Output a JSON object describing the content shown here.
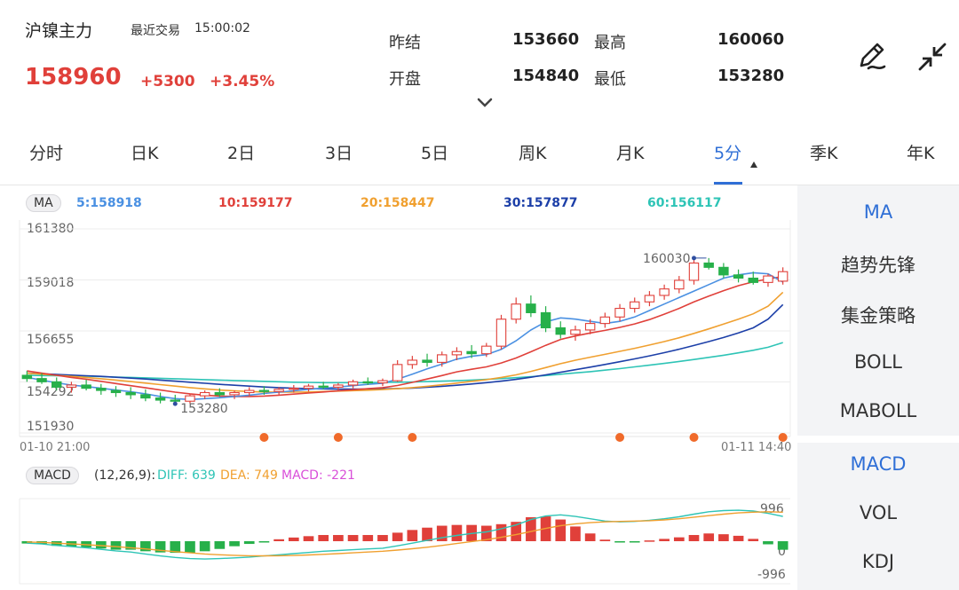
{
  "header": {
    "instrument_name": "沪镍主力",
    "last_trade_label": "最近交易",
    "last_trade_time": "15:00:02",
    "last_price": "158960",
    "change": "+5300",
    "change_pct": "+3.45%",
    "quotes": [
      {
        "label": "昨结",
        "value": "153660"
      },
      {
        "label": "最高",
        "value": "160060"
      },
      {
        "label": "开盘",
        "value": "154840"
      },
      {
        "label": "最低",
        "value": "153280"
      }
    ]
  },
  "tabs": [
    {
      "label": "分时"
    },
    {
      "label": "日K"
    },
    {
      "label": "2日"
    },
    {
      "label": "3日"
    },
    {
      "label": "5日"
    },
    {
      "label": "周K"
    },
    {
      "label": "月K"
    },
    {
      "label": "5分",
      "active": true
    },
    {
      "label": "季K"
    },
    {
      "label": "年K"
    }
  ],
  "indicator_panel": {
    "main_items": [
      "MA",
      "趋势先锋",
      "集金策略",
      "BOLL",
      "MABOLL"
    ],
    "sub_items": [
      "MACD",
      "VOL",
      "KDJ"
    ],
    "active_main": "MA",
    "active_sub": "MACD"
  },
  "colors": {
    "up": "#e0403a",
    "down": "#27b04a",
    "accent": "#2f6fd6",
    "ma5": "#4a90e2",
    "ma10": "#e0403a",
    "ma20": "#f0a030",
    "ma30": "#1c3fa8",
    "ma60": "#2ec4b6",
    "signal_dot": "#f06a2a"
  },
  "chart_data": [
    {
      "type": "candlestick",
      "indicator_label": "MA",
      "ma_legend": [
        {
          "name": "5",
          "value": "5:158918"
        },
        {
          "name": "10",
          "value": "10:159177"
        },
        {
          "name": "20",
          "value": "20:158447"
        },
        {
          "name": "30",
          "value": "30:157877"
        },
        {
          "name": "60",
          "value": "60:156117"
        }
      ],
      "y_ticks": [
        "161380",
        "159018",
        "156655",
        "154292",
        "151930"
      ],
      "ylim": [
        151930,
        161380
      ],
      "x_labels": [
        "01-10 21:00",
        "01-11 14:40"
      ],
      "annotations": {
        "max_label": "160030",
        "min_label": "153280"
      },
      "grid": true,
      "ohlc": [
        [
          154600,
          154800,
          154300,
          154450
        ],
        [
          154450,
          154700,
          154200,
          154300
        ],
        [
          154300,
          154500,
          153900,
          154050
        ],
        [
          154050,
          154300,
          153800,
          154150
        ],
        [
          154150,
          154400,
          153900,
          154000
        ],
        [
          154000,
          154200,
          153700,
          153900
        ],
        [
          153900,
          154100,
          153600,
          153800
        ],
        [
          153800,
          154050,
          153500,
          153700
        ],
        [
          153700,
          153950,
          153400,
          153550
        ],
        [
          153550,
          153800,
          153300,
          153450
        ],
        [
          153450,
          153700,
          153280,
          153400
        ],
        [
          153400,
          153750,
          153300,
          153650
        ],
        [
          153650,
          153900,
          153500,
          153800
        ],
        [
          153800,
          154000,
          153600,
          153700
        ],
        [
          153700,
          153900,
          153500,
          153800
        ],
        [
          153800,
          154050,
          153650,
          153900
        ],
        [
          153900,
          154100,
          153700,
          153850
        ],
        [
          153850,
          154050,
          153700,
          153950
        ],
        [
          153950,
          154150,
          153800,
          154000
        ],
        [
          154000,
          154200,
          153850,
          154100
        ],
        [
          154100,
          154300,
          153950,
          154050
        ],
        [
          154050,
          154250,
          153900,
          154150
        ],
        [
          154150,
          154400,
          154000,
          154300
        ],
        [
          154300,
          154500,
          154150,
          154250
        ],
        [
          154250,
          154450,
          154100,
          154350
        ],
        [
          154350,
          155300,
          154300,
          155100
        ],
        [
          155100,
          155500,
          154900,
          155300
        ],
        [
          155300,
          155600,
          155000,
          155200
        ],
        [
          155200,
          155700,
          155000,
          155550
        ],
        [
          155550,
          155900,
          155300,
          155700
        ],
        [
          155700,
          156000,
          155400,
          155600
        ],
        [
          155600,
          156100,
          155450,
          155950
        ],
        [
          155950,
          157400,
          155800,
          157200
        ],
        [
          157200,
          158200,
          157000,
          157900
        ],
        [
          157900,
          158300,
          157300,
          157500
        ],
        [
          157500,
          157800,
          156600,
          156800
        ],
        [
          156800,
          157100,
          156300,
          156500
        ],
        [
          156500,
          156900,
          156200,
          156700
        ],
        [
          156700,
          157200,
          156500,
          157000
        ],
        [
          157000,
          157500,
          156800,
          157300
        ],
        [
          157300,
          157900,
          157100,
          157700
        ],
        [
          157700,
          158200,
          157500,
          158000
        ],
        [
          158000,
          158500,
          157800,
          158300
        ],
        [
          158300,
          158800,
          158100,
          158600
        ],
        [
          158600,
          159200,
          158400,
          159000
        ],
        [
          159000,
          160030,
          158800,
          159800
        ],
        [
          159800,
          160030,
          159500,
          159600
        ],
        [
          159600,
          159800,
          159100,
          159250
        ],
        [
          159250,
          159500,
          158900,
          159100
        ],
        [
          159100,
          159400,
          158800,
          158900
        ],
        [
          158900,
          159300,
          158700,
          159200
        ],
        [
          158960,
          159600,
          158800,
          159400
        ]
      ],
      "signal_points_index": [
        16,
        21,
        26,
        40,
        45,
        51
      ],
      "ma": {
        "ma5": [
          154500,
          154380,
          154250,
          154150,
          154080,
          154000,
          153920,
          153840,
          153740,
          153620,
          153520,
          153480,
          153520,
          153560,
          153620,
          153680,
          153760,
          153820,
          153880,
          153950,
          154000,
          154060,
          154120,
          154180,
          154230,
          154420,
          154650,
          154900,
          155120,
          155350,
          155480,
          155560,
          155800,
          156200,
          156700,
          157080,
          157260,
          157200,
          157100,
          157000,
          157100,
          157300,
          157600,
          157900,
          158200,
          158500,
          158800,
          159100,
          159250,
          159350,
          159300,
          158918
        ],
        "ma10": [
          154800,
          154700,
          154600,
          154500,
          154420,
          154320,
          154220,
          154120,
          154020,
          153920,
          153820,
          153740,
          153680,
          153640,
          153620,
          153620,
          153640,
          153680,
          153730,
          153780,
          153830,
          153880,
          153930,
          153980,
          154030,
          154130,
          154270,
          154430,
          154590,
          154760,
          154880,
          154990,
          155170,
          155400,
          155690,
          155990,
          156260,
          156420,
          156560,
          156680,
          156820,
          156980,
          157180,
          157430,
          157700,
          158000,
          158270,
          158520,
          158750,
          158930,
          159060,
          159177
        ],
        "ma20": [
          154700,
          154650,
          154600,
          154550,
          154500,
          154440,
          154380,
          154310,
          154240,
          154170,
          154100,
          154030,
          153970,
          153920,
          153880,
          153850,
          153830,
          153820,
          153820,
          153830,
          153850,
          153870,
          153890,
          153910,
          153940,
          153980,
          154030,
          154090,
          154160,
          154240,
          154320,
          154400,
          154500,
          154620,
          154780,
          154960,
          155140,
          155300,
          155440,
          155570,
          155710,
          155850,
          156000,
          156160,
          156340,
          156540,
          156750,
          156970,
          157200,
          157450,
          157800,
          158447
        ],
        "ma30": [
          154700,
          154670,
          154640,
          154610,
          154580,
          154550,
          154510,
          154470,
          154430,
          154380,
          154330,
          154280,
          154230,
          154180,
          154140,
          154100,
          154060,
          154030,
          154000,
          153980,
          153970,
          153960,
          153960,
          153960,
          153970,
          153990,
          154010,
          154050,
          154090,
          154140,
          154200,
          154260,
          154330,
          154410,
          154510,
          154620,
          154740,
          154860,
          154980,
          155100,
          155230,
          155360,
          155500,
          155650,
          155810,
          155980,
          156160,
          156350,
          156560,
          156800,
          157200,
          157877
        ],
        "ma60": [
          154600,
          154590,
          154580,
          154570,
          154560,
          154540,
          154520,
          154500,
          154480,
          154460,
          154440,
          154420,
          154400,
          154380,
          154360,
          154340,
          154320,
          154300,
          154280,
          154270,
          154260,
          154260,
          154260,
          154260,
          154270,
          154280,
          154290,
          154310,
          154330,
          154350,
          154380,
          154410,
          154450,
          154490,
          154540,
          154590,
          154650,
          154710,
          154770,
          154840,
          154910,
          154990,
          155070,
          155150,
          155240,
          155330,
          155430,
          155530,
          155640,
          155760,
          155900,
          156117
        ]
      }
    },
    {
      "type": "bar",
      "indicator_label": "MACD",
      "params_text": "(12,26,9):",
      "legend": [
        {
          "name": "DIFF",
          "value": "DIFF: 639"
        },
        {
          "name": "DEA",
          "value": "DEA: 749"
        },
        {
          "name": "MACD",
          "value": "MACD: -221"
        }
      ],
      "y_ticks": [
        "996",
        "0",
        "-996"
      ],
      "ylim": [
        -1100,
        1100
      ],
      "diff": [
        -50,
        -70,
        -110,
        -140,
        -170,
        -210,
        -250,
        -280,
        -330,
        -380,
        -420,
        -450,
        -460,
        -450,
        -430,
        -410,
        -380,
        -350,
        -320,
        -290,
        -260,
        -240,
        -220,
        -200,
        -180,
        -120,
        -50,
        20,
        90,
        150,
        200,
        240,
        320,
        420,
        560,
        650,
        680,
        640,
        580,
        520,
        500,
        510,
        540,
        580,
        630,
        700,
        760,
        790,
        800,
        780,
        720,
        639
      ],
      "dea": [
        -20,
        -30,
        -50,
        -70,
        -90,
        -115,
        -140,
        -170,
        -200,
        -235,
        -270,
        -300,
        -330,
        -350,
        -365,
        -375,
        -378,
        -375,
        -368,
        -355,
        -340,
        -320,
        -300,
        -280,
        -260,
        -230,
        -195,
        -155,
        -110,
        -60,
        -10,
        40,
        100,
        170,
        250,
        330,
        400,
        450,
        480,
        500,
        510,
        520,
        530,
        550,
        580,
        620,
        660,
        700,
        730,
        750,
        760,
        749
      ],
      "macd": [
        -60,
        -80,
        -120,
        -140,
        -160,
        -190,
        -220,
        -220,
        -260,
        -290,
        -300,
        -300,
        -260,
        -200,
        -130,
        -70,
        -5,
        50,
        95,
        130,
        160,
        160,
        160,
        160,
        160,
        220,
        290,
        350,
        400,
        420,
        420,
        400,
        440,
        500,
        620,
        640,
        560,
        380,
        200,
        40,
        -20,
        -20,
        20,
        60,
        100,
        160,
        200,
        180,
        140,
        60,
        -80,
        -221
      ]
    }
  ]
}
